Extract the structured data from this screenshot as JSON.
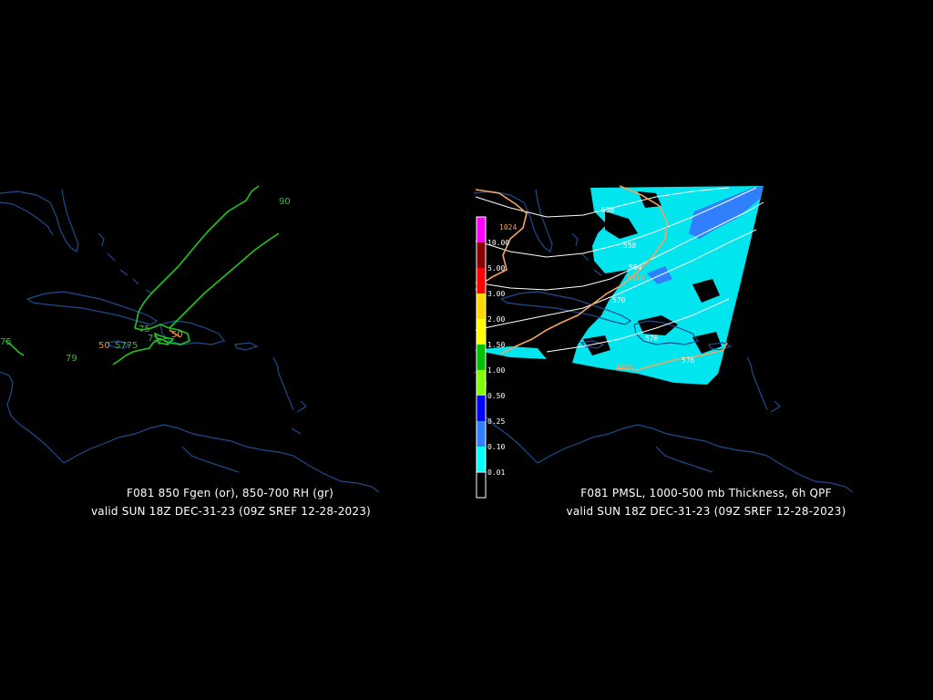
{
  "left_panel": {
    "title": "F081 850 Fgen (or), 850-700 RH (gr)",
    "valid": "valid SUN 18Z DEC-31-23 (09Z SREF 12-28-2023)",
    "rh_labels": [
      "90",
      "75",
      "75",
      "75",
      "79",
      "5775",
      "75",
      "775"
    ],
    "fgen_labels": [
      "50",
      "50"
    ],
    "colors": {
      "rh": "#22c422",
      "fgen": "#ff8c1a",
      "coast": "#1e4b8c"
    }
  },
  "right_panel": {
    "title": "F081 PMSL, 1000-500 mb Thickness, 6h QPF",
    "valid": "valid SUN 18Z DEC-31-23 (09Z SREF 12-28-2023)",
    "pressure_labels": [
      "1024",
      "1016",
      "1016"
    ],
    "thickness_labels": [
      "558",
      "558",
      "564",
      "570",
      "576",
      "576"
    ],
    "colorbar": {
      "labels": [
        "10.00",
        "5.00",
        "3.00",
        "2.00",
        "1.50",
        "1.00",
        "0.50",
        "0.25",
        "0.10",
        "0.01"
      ],
      "colors": [
        "#ff00ff",
        "#8b0000",
        "#ff0000",
        "#ff8c00",
        "#ffd700",
        "#ffff00",
        "#00c000",
        "#80ff00",
        "#0000ff",
        "#2f80ff",
        "#00ffff",
        "#000000"
      ]
    },
    "colors": {
      "qpf_light": "#00e5ee",
      "qpf_mod": "#2f7fff",
      "thickness": "#ffffff",
      "pmsl": "#f4a460"
    }
  }
}
